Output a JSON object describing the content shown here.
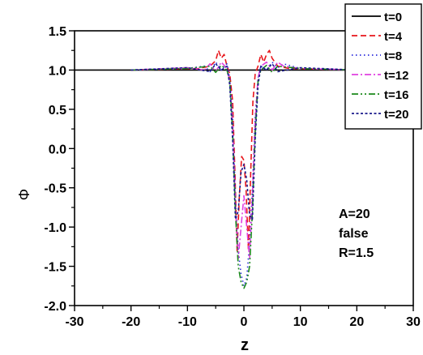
{
  "chart_data": {
    "type": "line",
    "xlabel": "z",
    "ylabel": "Φ",
    "xlim": [
      -30,
      30
    ],
    "ylim": [
      -2.0,
      1.5
    ],
    "xticks": [
      -30,
      -20,
      -10,
      0,
      10,
      20,
      30
    ],
    "xtick_labels": [
      "-30",
      "-20",
      "-10",
      "0",
      "10",
      "20",
      "30"
    ],
    "yticks": [
      1.5,
      1.0,
      0.5,
      0.0,
      -0.5,
      -1.0,
      -1.5,
      -2.0
    ],
    "ytick_labels": [
      "1.5",
      "1.0",
      "0.5",
      "0.0",
      "-0.5",
      "-1.0",
      "-1.5",
      "-2.0"
    ],
    "grid": false,
    "legend_position": "top-right",
    "annotation": [
      "A=20",
      "false",
      "R=1.5"
    ],
    "series": [
      {
        "name": "t=0",
        "color": "#000000",
        "dash": "solid",
        "x": [
          -30,
          30
        ],
        "y": [
          1.0,
          1.0
        ]
      },
      {
        "name": "t=4",
        "color": "#e8161b",
        "dash": "dashed",
        "x": [
          -20,
          -8,
          -6,
          -5,
          -4.5,
          -4,
          -3.5,
          -3,
          -2.5,
          -2,
          -1.6,
          -1.2,
          -0.8,
          -0.4,
          0,
          0.4,
          0.8,
          1.2,
          1.6,
          2,
          2.5,
          3,
          3.5,
          4,
          4.5,
          5,
          6,
          8,
          20
        ],
        "y": [
          1.0,
          1.02,
          1.05,
          1.12,
          1.25,
          1.15,
          1.2,
          1.05,
          0.95,
          0.6,
          -0.3,
          -1.3,
          -0.6,
          -0.1,
          -0.15,
          -0.55,
          -1.3,
          -0.3,
          0.6,
          0.95,
          1.05,
          1.2,
          1.1,
          1.2,
          1.25,
          1.15,
          1.05,
          1.02,
          1.0
        ]
      },
      {
        "name": "t=8",
        "color": "#2b2bdc",
        "dash": "dotted",
        "x": [
          -20,
          -10,
          -7,
          -6,
          -5,
          -4,
          -3,
          -2.5,
          -2,
          -1.5,
          -1,
          -0.5,
          0,
          0.5,
          1,
          1.5,
          2,
          2.5,
          3,
          4,
          5,
          6,
          7,
          10,
          20
        ],
        "y": [
          1.0,
          1.02,
          1.05,
          0.98,
          1.1,
          1.0,
          1.08,
          0.9,
          0.4,
          -0.6,
          -1.3,
          -1.6,
          -1.75,
          -1.65,
          -1.2,
          -0.5,
          0.4,
          0.9,
          1.05,
          1.0,
          1.1,
          1.03,
          1.08,
          1.02,
          1.0
        ]
      },
      {
        "name": "t=12",
        "color": "#e040e0",
        "dash": "dashdot",
        "x": [
          -20,
          -10,
          -7,
          -6,
          -5,
          -4,
          -3,
          -2.5,
          -2,
          -1.5,
          -1,
          -0.5,
          0,
          0.5,
          1,
          1.5,
          2,
          2.5,
          3,
          4,
          5,
          6,
          7,
          10,
          20
        ],
        "y": [
          1.0,
          1.03,
          1.0,
          1.08,
          0.98,
          1.1,
          1.02,
          0.85,
          0.3,
          -0.7,
          -1.4,
          -1.0,
          -0.6,
          -1.0,
          -1.4,
          -0.6,
          0.35,
          0.9,
          1.05,
          1.1,
          1.0,
          1.1,
          1.05,
          1.02,
          1.0
        ]
      },
      {
        "name": "t=16",
        "color": "#1b8a1b",
        "dash": "dashdotdot",
        "x": [
          -20,
          -10,
          -6,
          -5,
          -4,
          -3,
          -2.5,
          -2,
          -1.5,
          -1,
          -0.5,
          0,
          0.5,
          1,
          1.5,
          2,
          2.5,
          3,
          4,
          5,
          6,
          10,
          20
        ],
        "y": [
          1.0,
          1.02,
          1.05,
          0.97,
          1.06,
          1.0,
          0.85,
          0.2,
          -0.8,
          -1.5,
          -1.7,
          -1.78,
          -1.7,
          -1.5,
          -0.8,
          0.2,
          0.85,
          1.0,
          1.06,
          0.97,
          1.05,
          1.02,
          1.0
        ]
      },
      {
        "name": "t=20",
        "color": "#1a1a8c",
        "dash": "shortdash",
        "x": [
          -20,
          -10,
          -6,
          -5,
          -4,
          -3,
          -2.5,
          -2,
          -1.5,
          -1,
          -0.5,
          0,
          0.5,
          1,
          1.5,
          2,
          2.5,
          3,
          4,
          5,
          6,
          10,
          20
        ],
        "y": [
          1.0,
          1.03,
          0.98,
          1.08,
          1.0,
          1.05,
          0.8,
          0.1,
          -0.9,
          -0.8,
          -0.3,
          -0.2,
          -0.4,
          -0.85,
          -0.9,
          0.1,
          0.8,
          1.05,
          1.0,
          1.08,
          0.98,
          1.03,
          1.0
        ]
      }
    ]
  }
}
